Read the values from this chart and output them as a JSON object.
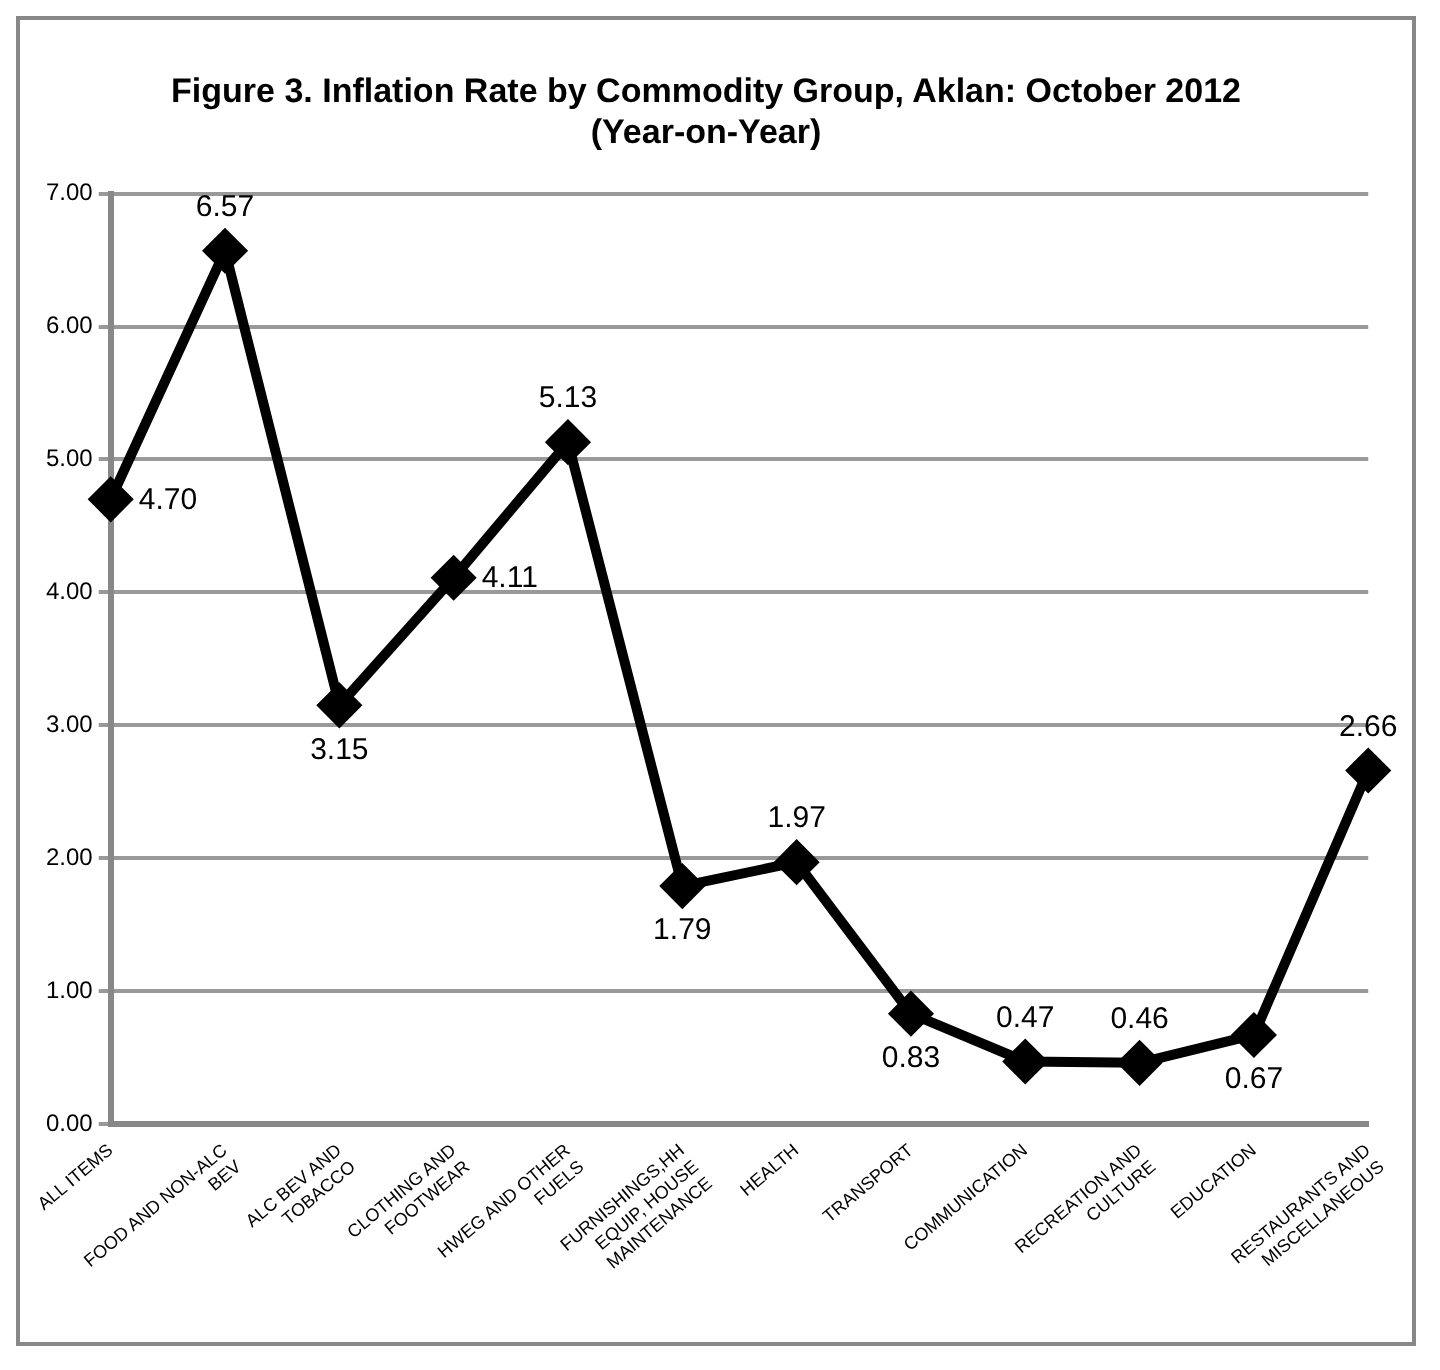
{
  "chart_data": {
    "type": "line",
    "title": [
      "Figure 3. Inflation Rate by Commodity Group, Aklan: October 2012",
      "(Year-on-Year)"
    ],
    "categories": [
      "ALL ITEMS",
      "FOOD AND NON-ALC BEV",
      "ALC BEV AND TOBACCO",
      "CLOTHING AND FOOTWEAR",
      "HWEG AND OTHER FUELS",
      "FURNISHINGS,HH EQUIP, HOUSE MAINTENANCE",
      "HEALTH",
      "TRANSPORT",
      "COMMUNICATION",
      "RECREATION AND CULTURE",
      "EDUCATION",
      "RESTAURANTS AND MISCELLANEOUS"
    ],
    "series": [
      {
        "color": "#000000",
        "values": [
          4.7,
          6.57,
          3.15,
          4.11,
          5.13,
          1.79,
          1.97,
          0.83,
          0.47,
          0.46,
          0.67,
          2.66
        ],
        "value_labels": [
          "4.70",
          "6.57",
          "3.15",
          "4.11",
          "5.13",
          "1.79",
          "1.97",
          "0.83",
          "0.47",
          "0.46",
          "0.67",
          "2.66"
        ]
      }
    ],
    "ylim": [
      0,
      7
    ],
    "yticks": [
      {
        "value": 0,
        "label": "0.00"
      },
      {
        "value": 1,
        "label": "1.00"
      },
      {
        "value": 2,
        "label": "2.00"
      },
      {
        "value": 3,
        "label": "3.00"
      },
      {
        "value": 4,
        "label": "4.00"
      },
      {
        "value": 5,
        "label": "5.00"
      },
      {
        "value": 6,
        "label": "6.00"
      },
      {
        "value": 7,
        "label": "7.00"
      }
    ],
    "grid": "y",
    "legend": false,
    "marker": "diamond",
    "line_style": "solid"
  }
}
